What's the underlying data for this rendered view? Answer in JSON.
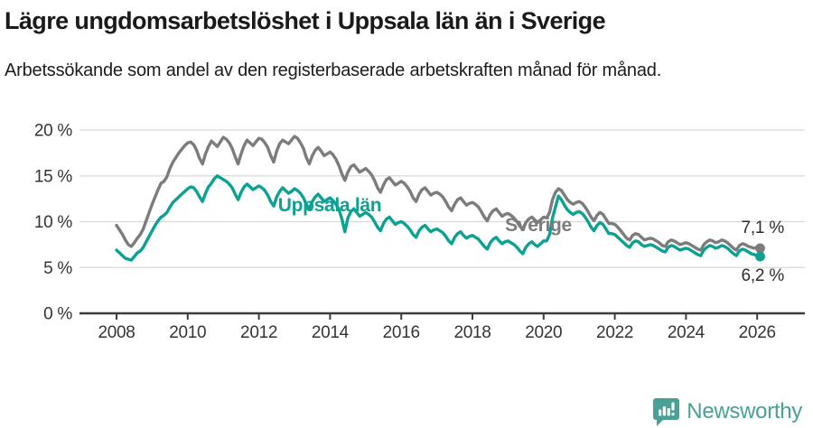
{
  "header": {
    "title": "Lägre ungdomsarbetslöshet i Uppsala län än i Sverige",
    "subtitle": "Arbetssökande som andel av den registerbaserade arbetskraften månad för månad."
  },
  "chart_data": {
    "type": "line",
    "title": "",
    "xlabel": "",
    "ylabel": "%",
    "x_start": "2008-01",
    "x_end": "2026-02",
    "x_interval": "monthly",
    "x_ticks": [
      2008,
      2010,
      2012,
      2014,
      2016,
      2018,
      2020,
      2022,
      2024,
      2026
    ],
    "y_ticks": [
      {
        "value": 0,
        "label": "0 %"
      },
      {
        "value": 5,
        "label": "5 %"
      },
      {
        "value": 10,
        "label": "10 %"
      },
      {
        "value": 15,
        "label": "15 %"
      },
      {
        "value": 20,
        "label": "20 %"
      }
    ],
    "ylim": [
      0,
      21
    ],
    "grid": "horizontal",
    "legend_position": "inline-annotations",
    "series": [
      {
        "name": "Sverige",
        "color": "#7c7c7c",
        "end_label": "7,1 %",
        "end_value": 7.1,
        "values": [
          9.6,
          9.1,
          8.6,
          8.0,
          7.5,
          7.3,
          7.7,
          8.2,
          8.6,
          9.2,
          10.1,
          11.0,
          11.9,
          12.7,
          13.5,
          14.2,
          14.4,
          14.9,
          15.8,
          16.5,
          17.0,
          17.5,
          17.9,
          18.3,
          18.6,
          18.7,
          18.4,
          17.8,
          16.9,
          16.3,
          17.4,
          18.2,
          18.8,
          18.5,
          18.2,
          18.7,
          19.2,
          19.0,
          18.6,
          18.0,
          17.1,
          16.3,
          17.4,
          18.3,
          18.9,
          18.6,
          18.3,
          18.7,
          19.1,
          19.0,
          18.6,
          18.1,
          17.2,
          16.5,
          17.7,
          18.5,
          18.9,
          18.7,
          18.5,
          18.9,
          19.3,
          19.1,
          18.6,
          18.0,
          17.0,
          16.3,
          17.2,
          17.8,
          18.1,
          17.7,
          17.2,
          17.4,
          17.6,
          17.3,
          16.8,
          16.1,
          15.2,
          14.5,
          15.4,
          16.0,
          16.2,
          15.8,
          15.4,
          15.6,
          15.8,
          15.5,
          15.1,
          14.5,
          13.7,
          13.2,
          14.0,
          14.6,
          14.8,
          14.4,
          14.0,
          14.2,
          14.4,
          14.2,
          13.8,
          13.3,
          12.6,
          12.2,
          13.0,
          13.5,
          13.7,
          13.3,
          12.9,
          13.1,
          13.2,
          13.0,
          12.7,
          12.2,
          11.6,
          11.2,
          11.9,
          12.4,
          12.6,
          12.2,
          11.8,
          12.0,
          12.1,
          11.9,
          11.6,
          11.1,
          10.5,
          10.1,
          10.8,
          11.2,
          11.4,
          11.0,
          10.6,
          10.8,
          10.9,
          10.7,
          10.4,
          10.0,
          9.5,
          9.2,
          9.9,
          10.3,
          10.5,
          10.2,
          9.9,
          10.2,
          10.5,
          10.4,
          11.0,
          12.4,
          13.2,
          13.6,
          13.4,
          12.9,
          12.4,
          12.1,
          11.9,
          12.1,
          12.2,
          12.0,
          11.6,
          11.1,
          10.5,
          10.1,
          10.7,
          11.0,
          10.8,
          10.3,
          9.8,
          9.8,
          9.7,
          9.4,
          9.0,
          8.6,
          8.2,
          8.0,
          8.5,
          8.7,
          8.6,
          8.3,
          8.0,
          8.1,
          8.2,
          8.1,
          7.9,
          7.7,
          7.4,
          7.3,
          7.8,
          8.0,
          7.9,
          7.7,
          7.5,
          7.6,
          7.7,
          7.6,
          7.4,
          7.2,
          7.0,
          6.9,
          7.5,
          7.8,
          8.0,
          7.9,
          7.7,
          7.8,
          8.0,
          7.9,
          7.7,
          7.4,
          7.1,
          6.9,
          7.4,
          7.6,
          7.5,
          7.3,
          7.2,
          7.1,
          7.2,
          7.1
        ]
      },
      {
        "name": "Uppsala län",
        "color": "#0ca192",
        "end_label": "6,2 %",
        "end_value": 6.2,
        "values": [
          6.9,
          6.6,
          6.3,
          6.0,
          5.9,
          5.8,
          6.2,
          6.6,
          6.8,
          7.2,
          7.8,
          8.4,
          9.0,
          9.6,
          10.1,
          10.5,
          10.7,
          11.0,
          11.6,
          12.1,
          12.4,
          12.7,
          13.0,
          13.3,
          13.6,
          13.8,
          13.7,
          13.3,
          12.7,
          12.2,
          13.1,
          13.8,
          14.2,
          14.7,
          15.0,
          14.8,
          14.6,
          14.4,
          14.1,
          13.7,
          13.0,
          12.4,
          13.2,
          13.8,
          14.1,
          13.8,
          13.5,
          13.7,
          13.9,
          13.7,
          13.4,
          12.9,
          12.2,
          11.7,
          12.7,
          13.3,
          13.7,
          13.4,
          13.1,
          13.3,
          13.6,
          13.4,
          13.1,
          12.6,
          11.9,
          11.4,
          12.2,
          12.7,
          13.0,
          12.6,
          12.2,
          12.4,
          12.6,
          12.3,
          11.9,
          11.3,
          10.3,
          8.9,
          10.4,
          11.1,
          11.4,
          11.0,
          10.6,
          10.8,
          11.0,
          10.8,
          10.5,
          10.0,
          9.4,
          9.0,
          9.8,
          10.3,
          10.5,
          10.1,
          9.7,
          9.9,
          10.0,
          9.8,
          9.5,
          9.1,
          8.6,
          8.3,
          9.0,
          9.4,
          9.6,
          9.2,
          8.9,
          9.1,
          9.2,
          9.0,
          8.8,
          8.4,
          7.9,
          7.6,
          8.3,
          8.7,
          8.9,
          8.5,
          8.2,
          8.4,
          8.5,
          8.3,
          8.1,
          7.7,
          7.3,
          7.0,
          7.7,
          8.1,
          8.3,
          7.9,
          7.6,
          7.8,
          7.9,
          7.7,
          7.5,
          7.2,
          6.8,
          6.5,
          7.2,
          7.6,
          7.8,
          7.5,
          7.3,
          7.6,
          7.9,
          7.9,
          8.6,
          10.4,
          11.6,
          12.8,
          12.4,
          11.8,
          11.3,
          11.0,
          10.8,
          11.0,
          11.1,
          10.9,
          10.5,
          10.0,
          9.4,
          9.0,
          9.6,
          9.9,
          9.7,
          9.2,
          8.7,
          8.7,
          8.6,
          8.3,
          8.0,
          7.7,
          7.4,
          7.2,
          7.7,
          7.9,
          7.8,
          7.5,
          7.3,
          7.4,
          7.5,
          7.4,
          7.2,
          7.0,
          6.8,
          6.7,
          7.2,
          7.4,
          7.3,
          7.1,
          6.9,
          7.0,
          7.1,
          7.0,
          6.8,
          6.6,
          6.4,
          6.3,
          6.9,
          7.2,
          7.4,
          7.3,
          7.1,
          7.2,
          7.4,
          7.3,
          7.1,
          6.8,
          6.5,
          6.3,
          6.8,
          7.0,
          6.9,
          6.7,
          6.5,
          6.4,
          6.3,
          6.2
        ]
      }
    ]
  },
  "footer": {
    "brand": "Newsworthy",
    "brand_color": "#49a095",
    "brand_icon": "bar-chart-speech-bubble-icon"
  }
}
